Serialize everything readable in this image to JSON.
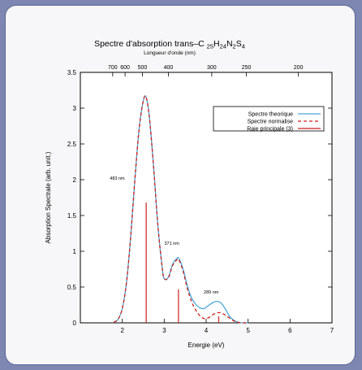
{
  "chart_data": {
    "type": "line",
    "title_main": "Spectre d'absorption  trans–C",
    "formula": [
      {
        "t": "25",
        "sub": true
      },
      {
        "t": "H",
        "sub": false
      },
      {
        "t": "24",
        "sub": true
      },
      {
        "t": "N",
        "sub": false
      },
      {
        "t": "2",
        "sub": true
      },
      {
        "t": "S",
        "sub": false
      },
      {
        "t": "4",
        "sub": true
      }
    ],
    "xlabel": "Energie (eV)",
    "ylabel": "Absorption Spectrale (arb. unit.)",
    "x2label": "Longueur d'onde (nm)",
    "xlim": [
      1,
      7
    ],
    "ylim": [
      0,
      3.5
    ],
    "xticks": [
      2,
      3,
      4,
      5,
      6,
      7
    ],
    "yticks": [
      0,
      0.5,
      1,
      1.5,
      2,
      2.5,
      3,
      3.5
    ],
    "ytick_labels": [
      "0",
      "0.5",
      "1",
      "1.5",
      "2",
      "2.5",
      "3",
      "3.5"
    ],
    "x2ticks": [
      700,
      600,
      500,
      400,
      300,
      250,
      200
    ],
    "grid": false,
    "legend_position": "top-right",
    "series": [
      {
        "name": "Spectre theorique",
        "color": "#4aa8d8",
        "style": "solid",
        "x": [
          1.8,
          1.9,
          2.0,
          2.1,
          2.2,
          2.3,
          2.4,
          2.5,
          2.57,
          2.65,
          2.75,
          2.85,
          2.95,
          3.0,
          3.1,
          3.2,
          3.3,
          3.35,
          3.45,
          3.55,
          3.65,
          3.75,
          3.85,
          3.95,
          4.05,
          4.15,
          4.25,
          4.35,
          4.45,
          4.55,
          4.65,
          4.75,
          4.85,
          5.0
        ],
        "y": [
          0.01,
          0.05,
          0.2,
          0.56,
          1.2,
          2.0,
          2.7,
          3.1,
          3.15,
          2.85,
          2.15,
          1.35,
          0.78,
          0.62,
          0.64,
          0.82,
          0.9,
          0.9,
          0.75,
          0.52,
          0.35,
          0.26,
          0.21,
          0.2,
          0.24,
          0.28,
          0.3,
          0.28,
          0.2,
          0.1,
          0.04,
          0.01,
          0.0,
          0.0
        ]
      },
      {
        "name": "Spectre normalise",
        "color": "#cc1f1f",
        "style": "dashed",
        "x": [
          1.8,
          1.9,
          2.0,
          2.1,
          2.2,
          2.3,
          2.4,
          2.5,
          2.57,
          2.65,
          2.75,
          2.85,
          2.95,
          3.0,
          3.1,
          3.2,
          3.3,
          3.35,
          3.45,
          3.55,
          3.65,
          3.75,
          3.85,
          3.95,
          4.05,
          4.15,
          4.25,
          4.35,
          4.45,
          4.55,
          4.65,
          4.75,
          4.85,
          5.0
        ],
        "y": [
          0.01,
          0.05,
          0.2,
          0.56,
          1.2,
          2.0,
          2.7,
          3.1,
          3.15,
          2.85,
          2.15,
          1.35,
          0.78,
          0.62,
          0.63,
          0.8,
          0.88,
          0.88,
          0.72,
          0.48,
          0.3,
          0.18,
          0.1,
          0.06,
          0.07,
          0.11,
          0.14,
          0.14,
          0.11,
          0.07,
          0.03,
          0.01,
          0.0,
          0.0
        ]
      }
    ],
    "sticks": {
      "name": "Raie principale (3)",
      "color": "#cc1f1f",
      "x": [
        2.57,
        3.34,
        4.3
      ],
      "y": [
        1.68,
        0.47,
        0.09
      ]
    },
    "annotations": [
      {
        "text": "483 nm",
        "x": 1.88,
        "y": 2.0
      },
      {
        "text": "371 nm",
        "x": 3.18,
        "y": 1.09
      },
      {
        "text": "289 nm",
        "x": 4.12,
        "y": 0.41
      }
    ]
  }
}
